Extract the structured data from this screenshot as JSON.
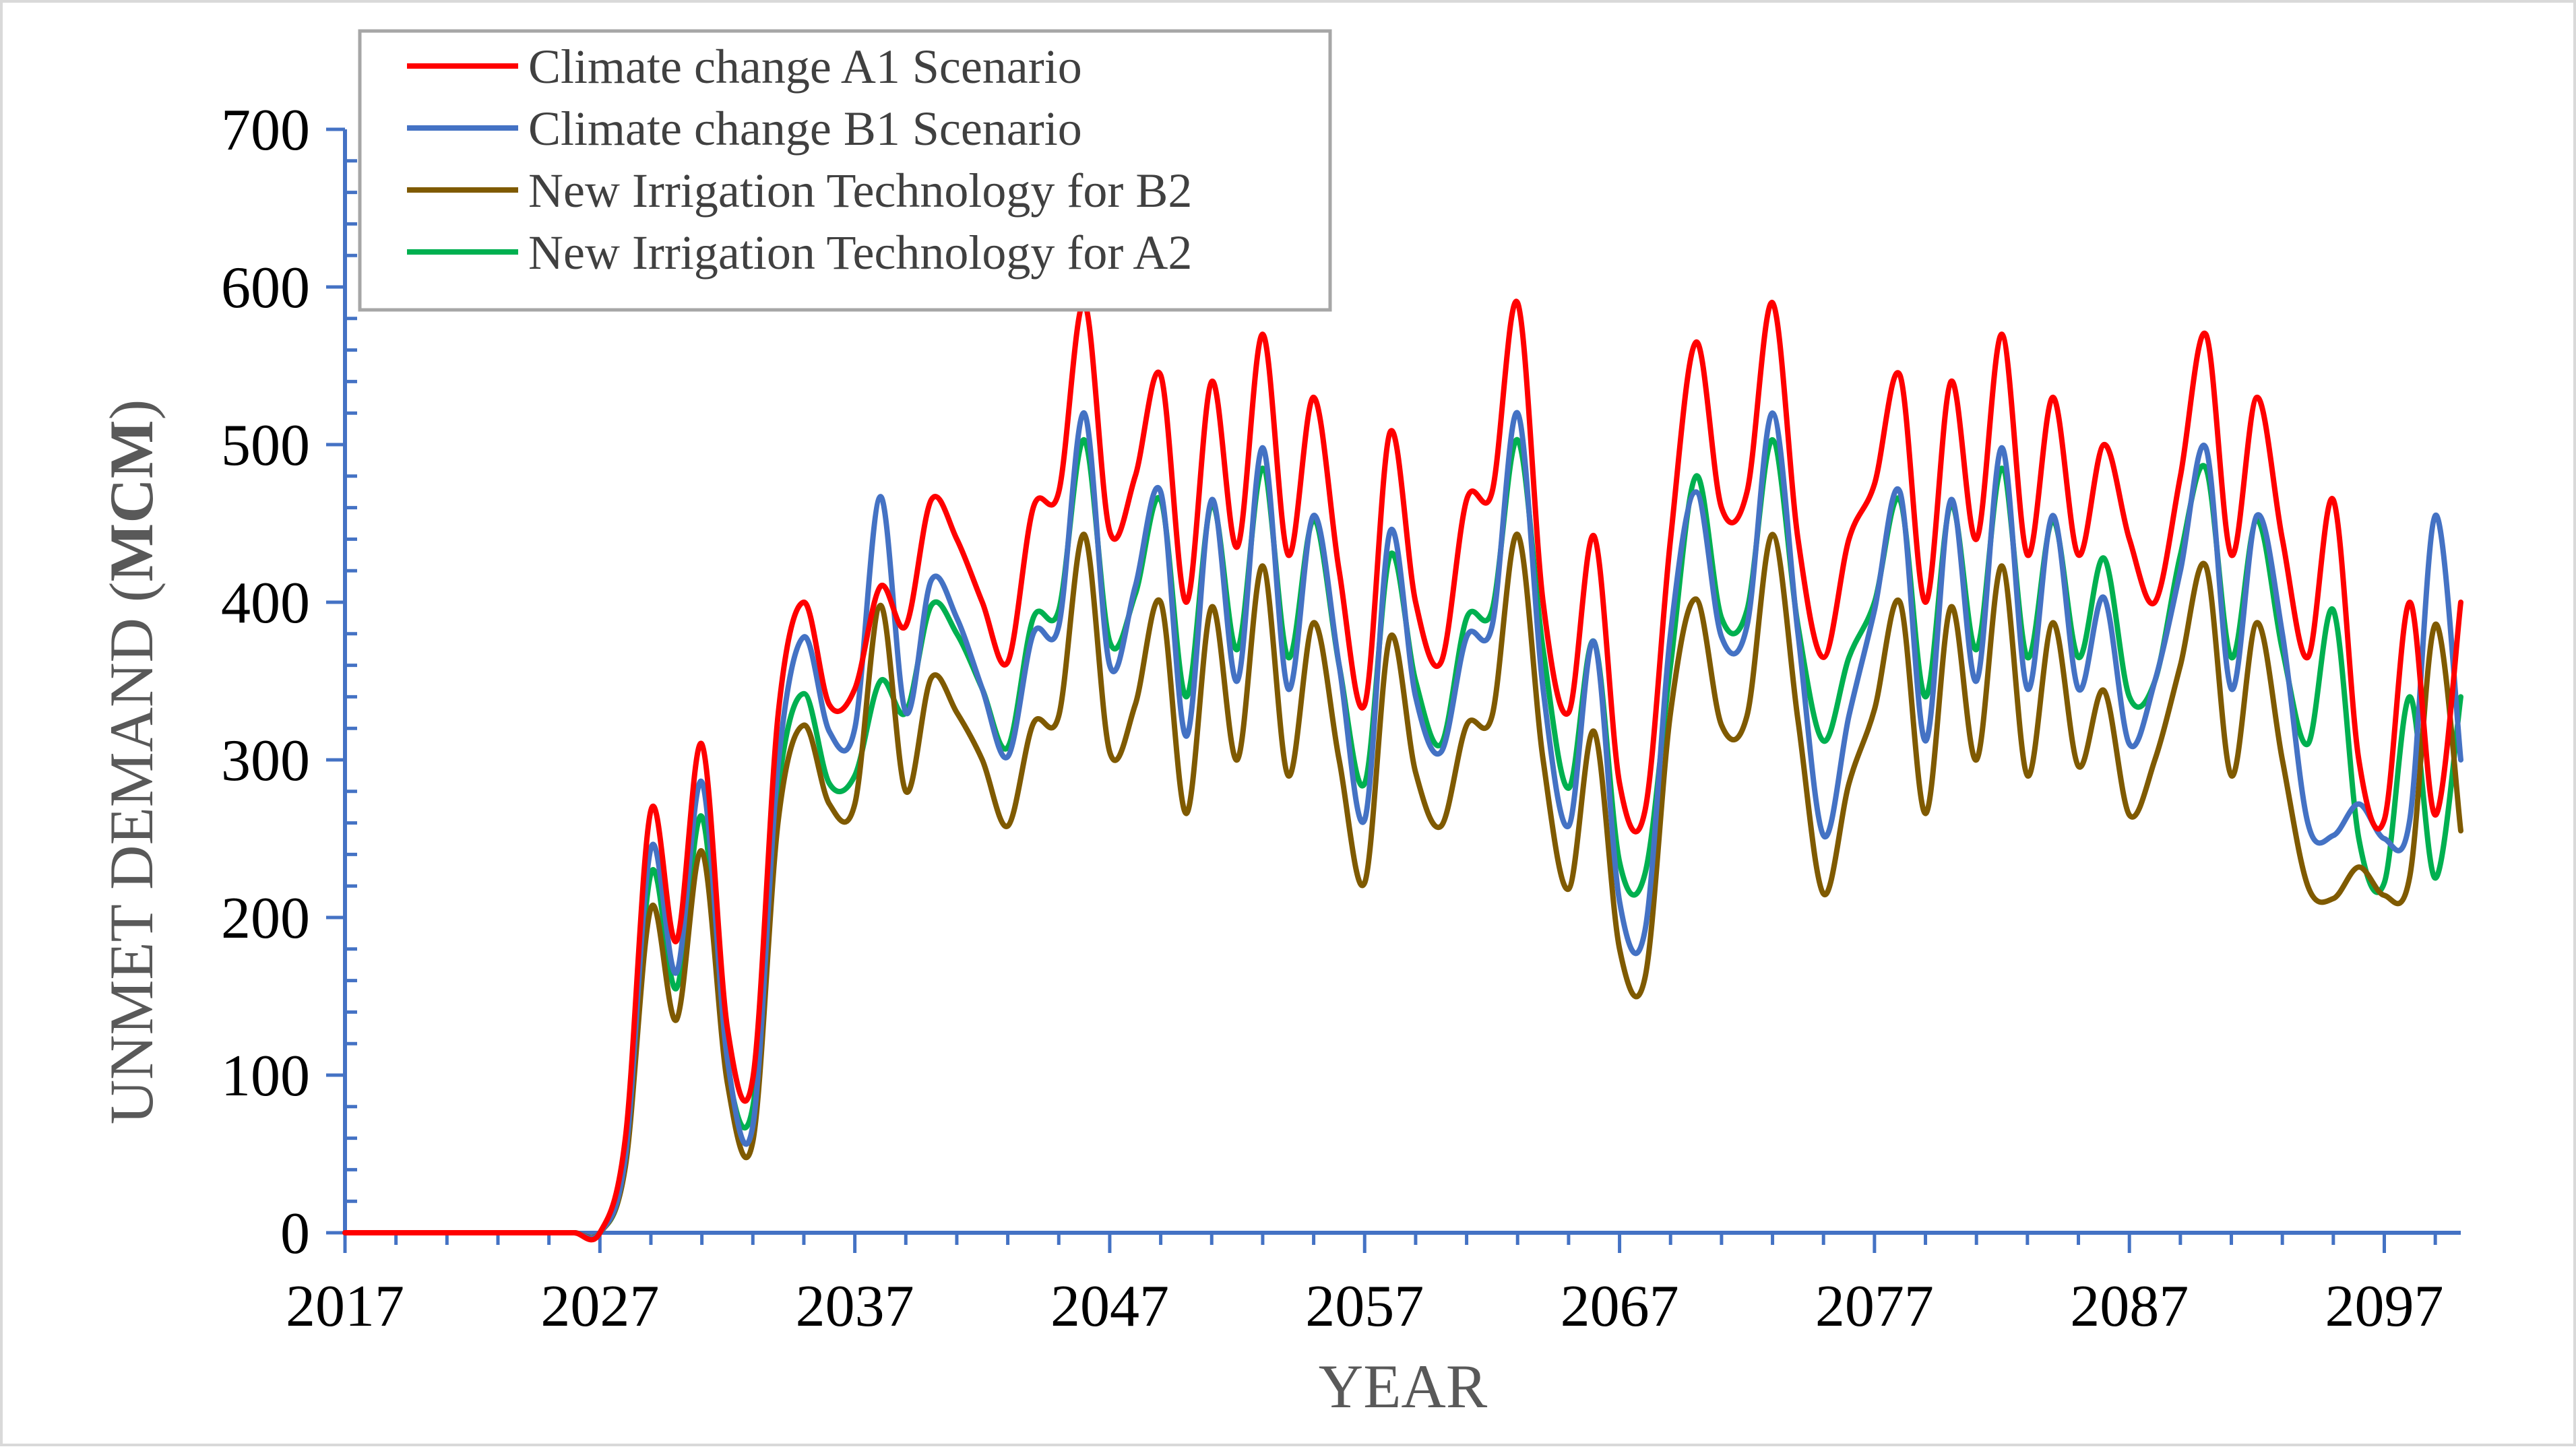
{
  "chart_data": {
    "type": "line",
    "title": "",
    "xlabel": "YEAR",
    "ylabel_prefix": "UNMET DEMAND (",
    "ylabel_unit": "MCM",
    "ylabel_suffix": ")",
    "xlim": [
      2017,
      2100
    ],
    "ylim": [
      0,
      700
    ],
    "x_ticks": [
      2017,
      2027,
      2037,
      2047,
      2057,
      2067,
      2077,
      2087,
      2097
    ],
    "y_ticks": [
      0,
      100,
      200,
      300,
      400,
      500,
      600,
      700
    ],
    "grid": false,
    "legend_position": "top-left",
    "x": [
      2017,
      2018,
      2019,
      2020,
      2021,
      2022,
      2023,
      2024,
      2025,
      2026,
      2027,
      2028,
      2029,
      2030,
      2031,
      2032,
      2033,
      2034,
      2035,
      2036,
      2037,
      2038,
      2039,
      2040,
      2041,
      2042,
      2043,
      2044,
      2045,
      2046,
      2047,
      2048,
      2049,
      2050,
      2051,
      2052,
      2053,
      2054,
      2055,
      2056,
      2057,
      2058,
      2059,
      2060,
      2061,
      2062,
      2063,
      2064,
      2065,
      2066,
      2067,
      2068,
      2069,
      2070,
      2071,
      2072,
      2073,
      2074,
      2075,
      2076,
      2077,
      2078,
      2079,
      2080,
      2081,
      2082,
      2083,
      2084,
      2085,
      2086,
      2087,
      2088,
      2089,
      2090,
      2091,
      2092,
      2093,
      2094,
      2095,
      2096,
      2097,
      2098,
      2099,
      2100
    ],
    "series": [
      {
        "name": "Climate change A1 Scenario",
        "color": "#ff0000",
        "values": [
          0,
          0,
          0,
          0,
          0,
          0,
          0,
          0,
          0,
          0,
          0,
          60,
          268,
          185,
          310,
          130,
          98,
          330,
          400,
          335,
          345,
          410,
          385,
          465,
          440,
          400,
          362,
          460,
          470,
          590,
          445,
          480,
          544,
          400,
          540,
          435,
          570,
          430,
          530,
          420,
          335,
          508,
          400,
          362,
          465,
          470,
          590,
          400,
          330,
          442,
          285,
          268,
          440,
          565,
          460,
          470,
          590,
          440,
          365,
          440,
          475,
          544,
          400,
          540,
          440,
          570,
          430,
          530,
          430,
          500,
          440,
          400,
          480,
          570,
          430,
          530,
          440,
          365,
          465,
          300,
          262,
          400,
          265,
          400
        ]
      },
      {
        "name": "Climate change B1 Scenario",
        "color": "#4472c4",
        "values": [
          0,
          0,
          0,
          0,
          0,
          0,
          0,
          0,
          0,
          0,
          0,
          48,
          244,
          165,
          286,
          110,
          68,
          298,
          378,
          318,
          320,
          467,
          330,
          414,
          390,
          345,
          302,
          380,
          385,
          520,
          360,
          410,
          470,
          315,
          465,
          350,
          498,
          345,
          455,
          360,
          262,
          445,
          340,
          305,
          378,
          385,
          520,
          345,
          258,
          375,
          210,
          192,
          380,
          470,
          378,
          385,
          520,
          380,
          252,
          328,
          395,
          470,
          312,
          465,
          350,
          498,
          345,
          455,
          345,
          403,
          310,
          350,
          420,
          498,
          345,
          455,
          380,
          260,
          252,
          272,
          250,
          262,
          455,
          300
        ]
      },
      {
        "name": "New Irrigation Technology for B2",
        "color": "#7f5a00",
        "values": [
          0,
          0,
          0,
          0,
          0,
          0,
          0,
          0,
          0,
          0,
          0,
          42,
          206,
          135,
          242,
          95,
          58,
          262,
          322,
          272,
          272,
          398,
          280,
          352,
          330,
          300,
          258,
          323,
          328,
          443,
          305,
          335,
          400,
          266,
          397,
          300,
          423,
          290,
          387,
          300,
          222,
          378,
          292,
          258,
          322,
          328,
          443,
          300,
          218,
          318,
          180,
          162,
          330,
          402,
          322,
          328,
          443,
          325,
          215,
          285,
          332,
          400,
          266,
          397,
          300,
          423,
          290,
          387,
          296,
          344,
          265,
          300,
          360,
          423,
          290,
          387,
          300,
          220,
          212,
          232,
          214,
          226,
          386,
          255
        ]
      },
      {
        "name": "New Irrigation Technology for A2",
        "color": "#00b050",
        "values": [
          0,
          0,
          0,
          0,
          0,
          0,
          0,
          0,
          0,
          0,
          0,
          44,
          228,
          155,
          264,
          105,
          80,
          282,
          342,
          285,
          290,
          350,
          330,
          398,
          380,
          345,
          308,
          390,
          395,
          503,
          375,
          405,
          465,
          340,
          462,
          370,
          485,
          365,
          452,
          360,
          285,
          430,
          350,
          310,
          390,
          395,
          503,
          370,
          282,
          375,
          235,
          228,
          360,
          480,
          390,
          395,
          503,
          385,
          312,
          365,
          400,
          465,
          340,
          462,
          370,
          485,
          365,
          452,
          365,
          428,
          340,
          350,
          430,
          485,
          365,
          452,
          370,
          310,
          395,
          250,
          222,
          340,
          225,
          340
        ]
      }
    ]
  }
}
